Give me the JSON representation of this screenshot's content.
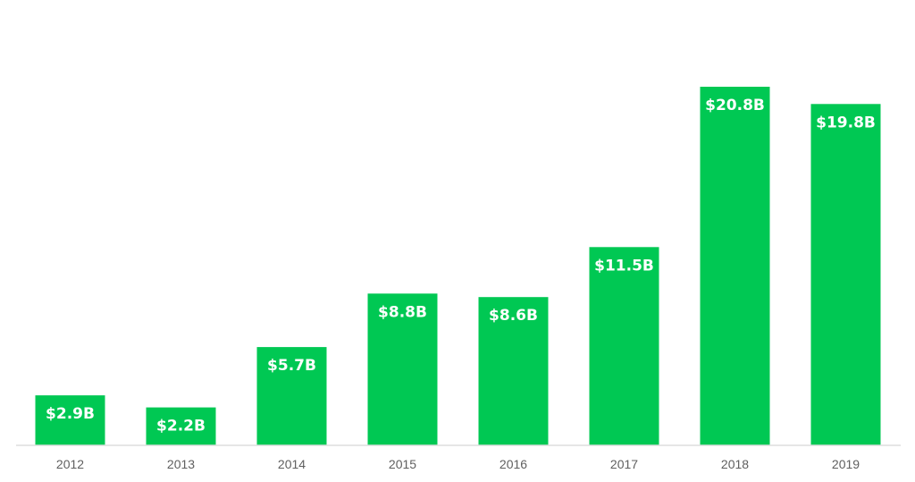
{
  "chart_data": {
    "type": "bar",
    "categories": [
      "2012",
      "2013",
      "2014",
      "2015",
      "2016",
      "2017",
      "2018",
      "2019"
    ],
    "values": [
      2.9,
      2.2,
      5.7,
      8.8,
      8.6,
      11.5,
      20.8,
      19.8
    ],
    "data_labels": [
      "$2.9B",
      "$2.2B",
      "$5.7B",
      "$8.8B",
      "$8.6B",
      "$11.5B",
      "$20.8B",
      "$19.8B"
    ],
    "title": "",
    "xlabel": "",
    "ylabel": "",
    "ylim": [
      0,
      21
    ],
    "grid": false,
    "legend": "none",
    "bar_color": "#00c853",
    "baseline_color": "#dddddd"
  }
}
